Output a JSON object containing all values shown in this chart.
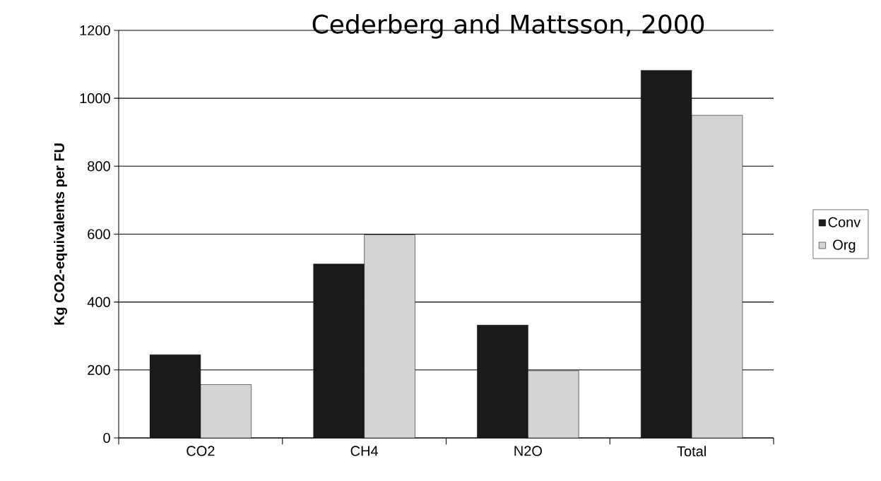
{
  "chart_data": {
    "type": "bar",
    "title": "Cederberg and Mattsson, 2000",
    "ylabel": "Kg CO2-equivalents per FU",
    "categories": [
      "CO2",
      "CH4",
      "N2O",
      "Total"
    ],
    "series": [
      {
        "name": "Conv",
        "color": "#1a1a1a",
        "values": [
          245,
          512,
          332,
          1082
        ]
      },
      {
        "name": "Org",
        "color": "#d4d4d4",
        "values": [
          157,
          598,
          198,
          950
        ]
      }
    ],
    "ylim": [
      0,
      1200
    ],
    "yticks": [
      0,
      200,
      400,
      600,
      800,
      1000,
      1200
    ],
    "grid": "y",
    "legend": "right"
  }
}
